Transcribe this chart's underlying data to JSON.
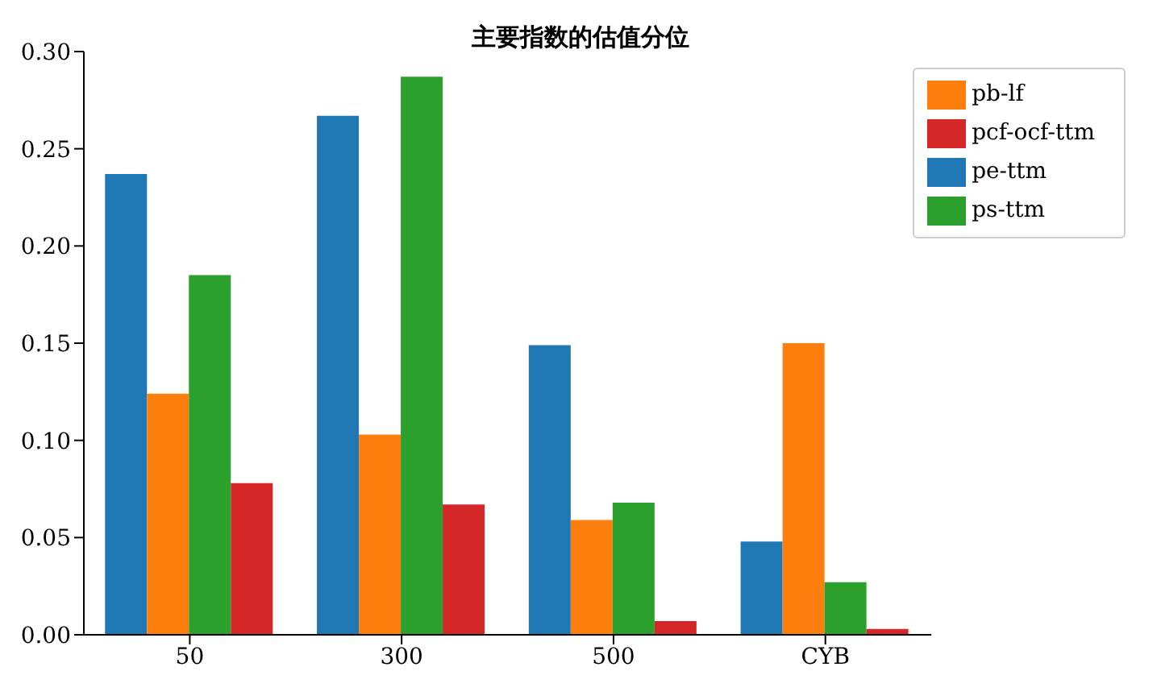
{
  "chart_data": {
    "type": "bar",
    "title": "主要指数的估值分位",
    "categories": [
      "50",
      "300",
      "500",
      "CYB"
    ],
    "series": [
      {
        "name": "pe-ttm",
        "color": "#1f77b4",
        "values": [
          0.237,
          0.267,
          0.149,
          0.048
        ]
      },
      {
        "name": "pb-lf",
        "color": "#ff7f0e",
        "values": [
          0.124,
          0.103,
          0.059,
          0.15
        ]
      },
      {
        "name": "ps-ttm",
        "color": "#2ca02c",
        "values": [
          0.185,
          0.287,
          0.068,
          0.027
        ]
      },
      {
        "name": "pcf-ocf-ttm",
        "color": "#d62728",
        "values": [
          0.078,
          0.067,
          0.007,
          0.003
        ]
      }
    ],
    "ylim": [
      0,
      0.3
    ],
    "yticks": [
      {
        "value": 0,
        "label": "0.00"
      },
      {
        "value": 0.05,
        "label": "0.05"
      },
      {
        "value": 0.1,
        "label": "0.10"
      },
      {
        "value": 0.15,
        "label": "0.15"
      },
      {
        "value": 0.2,
        "label": "0.20"
      },
      {
        "value": 0.25,
        "label": "0.25"
      },
      {
        "value": 0.3,
        "label": "0.30"
      }
    ],
    "grid": false,
    "legend": "top right"
  }
}
